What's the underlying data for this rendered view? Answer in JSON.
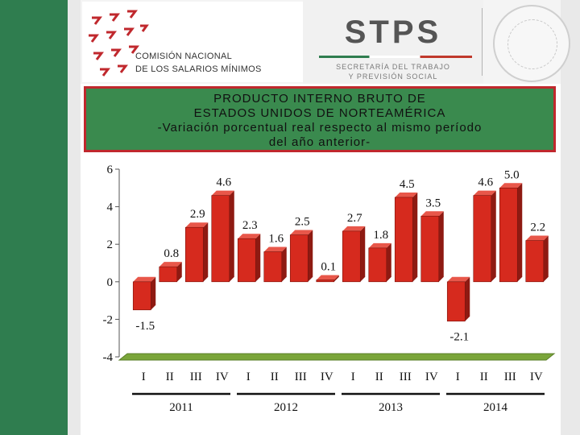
{
  "header": {
    "org_line1": "COMISIÓN NACIONAL",
    "org_line2": "DE LOS SALARIOS MÍNIMOS",
    "stps_title": "STPS",
    "stps_sub1": "SECRETARÍA DEL TRABAJO",
    "stps_sub2": "Y PREVISIÓN SOCIAL"
  },
  "colors": {
    "bar": "#d62a1e",
    "title_bg": "#3a8a4e",
    "title_border": "#c0282d",
    "floor": "#7aa53a"
  },
  "chart_data": {
    "type": "bar",
    "title_lines": [
      "PRODUCTO INTERNO BRUTO DE",
      "ESTADOS UNIDOS DE NORTEAMÉRICA",
      "-Variación porcentual real respecto al mismo período",
      "del año anterior-"
    ],
    "categories": [
      "I",
      "II",
      "III",
      "IV",
      "I",
      "II",
      "III",
      "IV",
      "I",
      "II",
      "III",
      "IV",
      "I",
      "II",
      "III",
      "IV"
    ],
    "groups": [
      {
        "label": "2011",
        "start": 0,
        "end": 3
      },
      {
        "label": "2012",
        "start": 4,
        "end": 7
      },
      {
        "label": "2013",
        "start": 8,
        "end": 11
      },
      {
        "label": "2014",
        "start": 12,
        "end": 15
      }
    ],
    "values": [
      -1.5,
      0.8,
      2.9,
      4.6,
      2.3,
      1.6,
      2.5,
      0.1,
      2.7,
      1.8,
      4.5,
      3.5,
      -2.1,
      4.6,
      5.0,
      2.2
    ],
    "data_labels": [
      "-1.5",
      "0.8",
      "2.9",
      "4.6",
      "2.3",
      "1.6",
      "2.5",
      "0.1",
      "2.7",
      "1.8",
      "4.5",
      "3.5",
      "-2.1",
      "4.6",
      "5.0",
      "2.2"
    ],
    "y_ticks": [
      "6",
      "4",
      "2",
      "0",
      "-2",
      "-4"
    ],
    "ylim": [
      -4,
      6
    ],
    "grid": false,
    "legend": false
  }
}
